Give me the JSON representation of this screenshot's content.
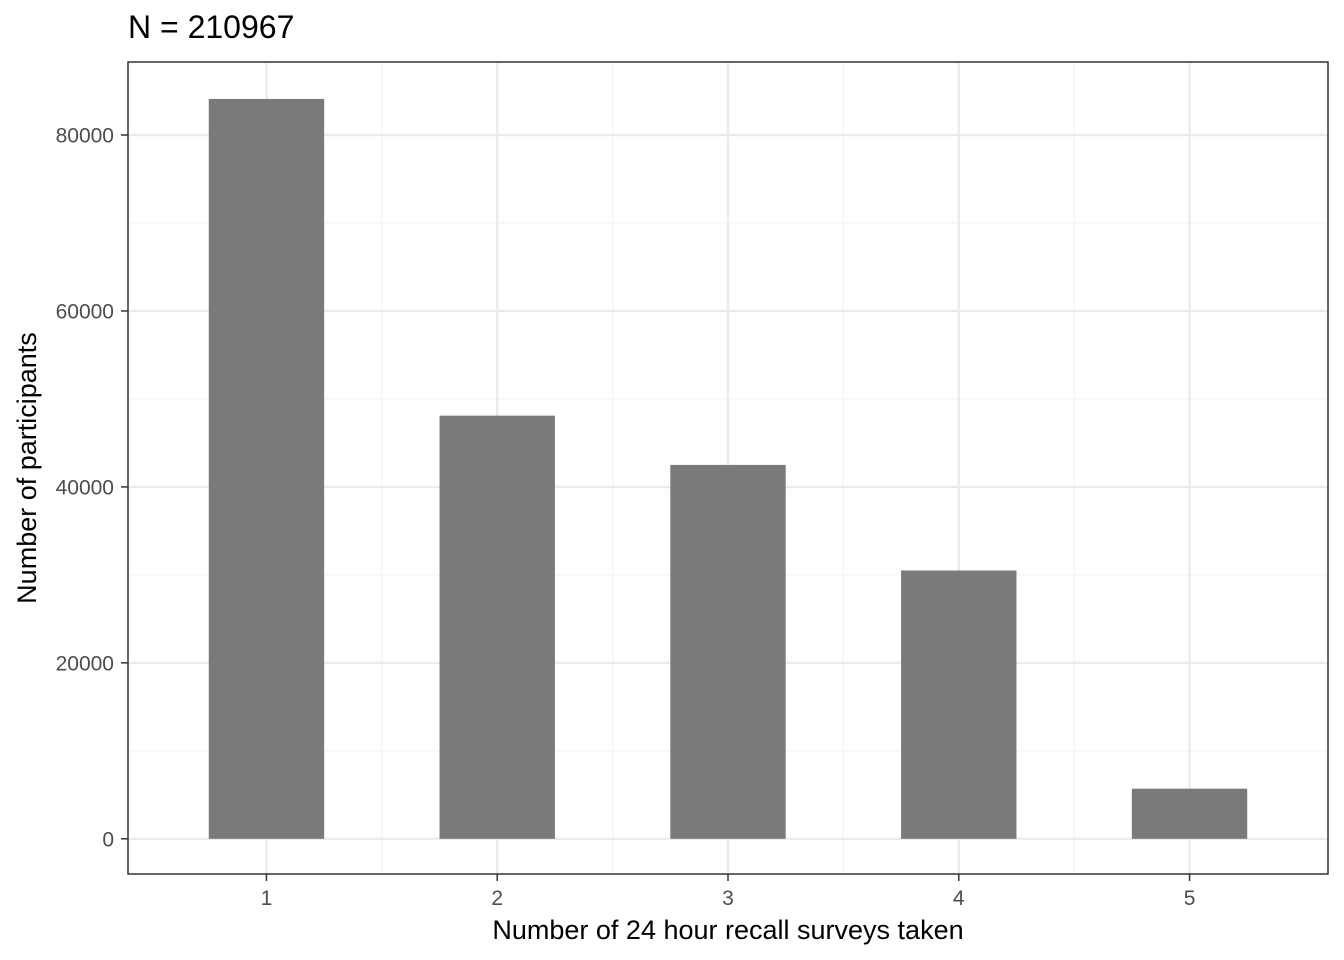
{
  "chart_data": {
    "type": "bar",
    "title": "N = 210967",
    "xlabel": "Number of 24 hour recall surveys taken",
    "ylabel": "Number of participants",
    "categories": [
      "1",
      "2",
      "3",
      "4",
      "5"
    ],
    "values": [
      84100,
      48100,
      42500,
      30500,
      5700
    ],
    "ylim": [
      -4000,
      88300
    ],
    "yticks": [
      0,
      20000,
      40000,
      60000,
      80000
    ],
    "ytick_labels": [
      "0",
      "20000",
      "40000",
      "60000",
      "80000"
    ],
    "grid": true,
    "legend": "none",
    "colors": {
      "bar": "#7a7a7a",
      "grid_major": "#ebebeb",
      "grid_minor": "#f3f3f3",
      "panel_border": "#333333",
      "tick": "#333333"
    }
  }
}
